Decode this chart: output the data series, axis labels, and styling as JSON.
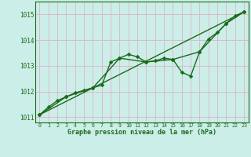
{
  "title": "Graphe pression niveau de la mer (hPa)",
  "background_color": "#cceee8",
  "plot_bg_color": "#cceee8",
  "grid_color": "#ddbbcc",
  "line_color": "#1a6b1a",
  "xlim": [
    -0.5,
    23.5
  ],
  "ylim": [
    1010.8,
    1015.5
  ],
  "yticks": [
    1011,
    1012,
    1013,
    1014,
    1015
  ],
  "xticks": [
    0,
    1,
    2,
    3,
    4,
    5,
    6,
    7,
    8,
    9,
    10,
    11,
    12,
    13,
    14,
    15,
    16,
    17,
    18,
    19,
    20,
    21,
    22,
    23
  ],
  "series": [
    {
      "x": [
        0,
        1,
        2,
        3,
        4,
        5,
        6,
        7,
        8,
        9,
        10,
        11,
        12,
        13,
        14,
        15,
        16,
        17,
        18,
        19,
        20,
        21,
        22,
        23
      ],
      "y": [
        1011.1,
        1011.4,
        1011.65,
        1011.8,
        1011.95,
        1012.05,
        1012.15,
        1012.25,
        1013.15,
        1013.3,
        1013.45,
        1013.35,
        1013.15,
        1013.2,
        1013.3,
        1013.25,
        1012.75,
        1012.6,
        1013.55,
        1014.05,
        1014.3,
        1014.65,
        1014.95,
        1015.1
      ],
      "marker": "D",
      "markersize": 2.5,
      "linewidth": 1.0
    },
    {
      "x": [
        0,
        3,
        6,
        9,
        12,
        15,
        18,
        21,
        23
      ],
      "y": [
        1011.1,
        1011.8,
        1012.15,
        1013.3,
        1013.15,
        1013.25,
        1013.55,
        1014.65,
        1015.1
      ],
      "marker": "P",
      "markersize": 3.0,
      "linewidth": 1.0
    },
    {
      "x": [
        0,
        23
      ],
      "y": [
        1011.1,
        1015.1
      ],
      "marker": null,
      "markersize": 0,
      "linewidth": 1.0
    }
  ]
}
